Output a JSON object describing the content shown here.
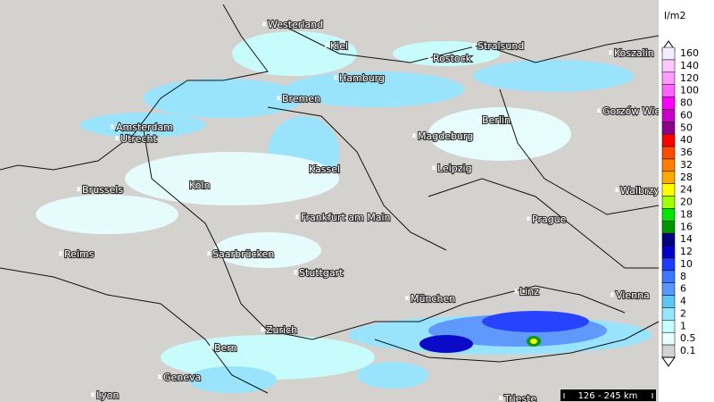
{
  "legend": {
    "unit": "l/m2",
    "items": [
      {
        "label": "160",
        "color": "#f4ecff"
      },
      {
        "label": "140",
        "color": "#ffc8ff"
      },
      {
        "label": "120",
        "color": "#ff9bff"
      },
      {
        "label": "100",
        "color": "#ff64ff"
      },
      {
        "label": "80",
        "color": "#ff00ff"
      },
      {
        "label": "60",
        "color": "#c800c8"
      },
      {
        "label": "50",
        "color": "#8c008c"
      },
      {
        "label": "40",
        "color": "#ff0000"
      },
      {
        "label": "36",
        "color": "#ff4b00"
      },
      {
        "label": "32",
        "color": "#ff7d00"
      },
      {
        "label": "28",
        "color": "#ffaa00"
      },
      {
        "label": "24",
        "color": "#ffff00"
      },
      {
        "label": "20",
        "color": "#a0ff00"
      },
      {
        "label": "18",
        "color": "#00e600"
      },
      {
        "label": "16",
        "color": "#009600"
      },
      {
        "label": "14",
        "color": "#000080"
      },
      {
        "label": "12",
        "color": "#0000c8"
      },
      {
        "label": "10",
        "color": "#1e3cff"
      },
      {
        "label": "8",
        "color": "#3c78ff"
      },
      {
        "label": "6",
        "color": "#5a96ff"
      },
      {
        "label": "4",
        "color": "#5ac8f0"
      },
      {
        "label": "2",
        "color": "#96e6ff"
      },
      {
        "label": "1",
        "color": "#c8ffff"
      },
      {
        "label": "0.5",
        "color": "#e8ffff"
      },
      {
        "label": "0.1",
        "color": "#d2d2d2"
      }
    ]
  },
  "scale_bar": "126 - 245 km",
  "cities": [
    {
      "name": "Westerland"
    },
    {
      "name": "Kiel"
    },
    {
      "name": "Stralsund"
    },
    {
      "name": "Rostock"
    },
    {
      "name": "Koszalin"
    },
    {
      "name": "Hamburg"
    },
    {
      "name": "Bremen"
    },
    {
      "name": "Berlin"
    },
    {
      "name": "Gorzów Wielkopolski"
    },
    {
      "name": "Amsterdam"
    },
    {
      "name": "Utrecht"
    },
    {
      "name": "Magdeburg"
    },
    {
      "name": "Kassel"
    },
    {
      "name": "Leipzig"
    },
    {
      "name": "Brussels"
    },
    {
      "name": "Köln"
    },
    {
      "name": "Walbrzych"
    },
    {
      "name": "Frankfurt am Main"
    },
    {
      "name": "Prague"
    },
    {
      "name": "Reims"
    },
    {
      "name": "Saarbrücken"
    },
    {
      "name": "Stuttgart"
    },
    {
      "name": "München"
    },
    {
      "name": "Linz"
    },
    {
      "name": "Vienna"
    },
    {
      "name": "Zurich"
    },
    {
      "name": "Bern"
    },
    {
      "name": "Geneva"
    },
    {
      "name": "Lyon"
    },
    {
      "name": "Trieste"
    }
  ]
}
